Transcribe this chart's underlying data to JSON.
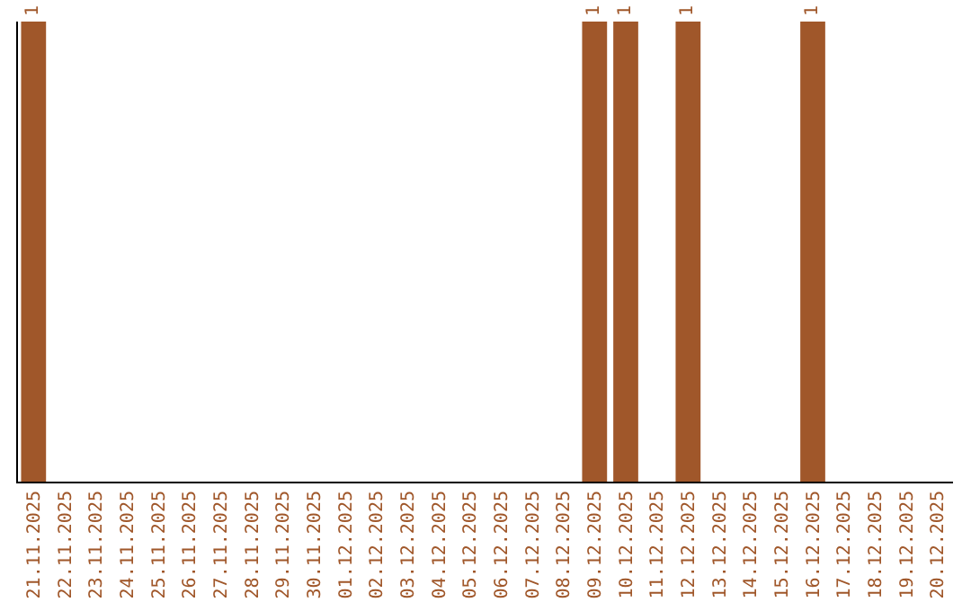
{
  "chart_data": {
    "type": "bar",
    "categories": [
      "21.11.2025",
      "22.11.2025",
      "23.11.2025",
      "24.11.2025",
      "25.11.2025",
      "26.11.2025",
      "27.11.2025",
      "28.11.2025",
      "29.11.2025",
      "30.11.2025",
      "01.12.2025",
      "02.12.2025",
      "03.12.2025",
      "04.12.2025",
      "05.12.2025",
      "06.12.2025",
      "07.12.2025",
      "08.12.2025",
      "09.12.2025",
      "10.12.2025",
      "11.12.2025",
      "12.12.2025",
      "13.12.2025",
      "14.12.2025",
      "15.12.2025",
      "16.12.2025",
      "17.12.2025",
      "18.12.2025",
      "19.12.2025",
      "20.12.2025"
    ],
    "values": [
      1,
      0,
      0,
      0,
      0,
      0,
      0,
      0,
      0,
      0,
      0,
      0,
      0,
      0,
      0,
      0,
      0,
      0,
      1,
      1,
      0,
      1,
      0,
      0,
      0,
      1,
      0,
      0,
      0,
      0
    ],
    "value_labels": [
      "1",
      null,
      null,
      null,
      null,
      null,
      null,
      null,
      null,
      null,
      null,
      null,
      null,
      null,
      null,
      null,
      null,
      null,
      "1",
      "1",
      null,
      "1",
      null,
      null,
      null,
      "1",
      null,
      null,
      null,
      null
    ],
    "color": "#a0572a",
    "tick_labels": "x",
    "grid": false,
    "legend": false
  }
}
